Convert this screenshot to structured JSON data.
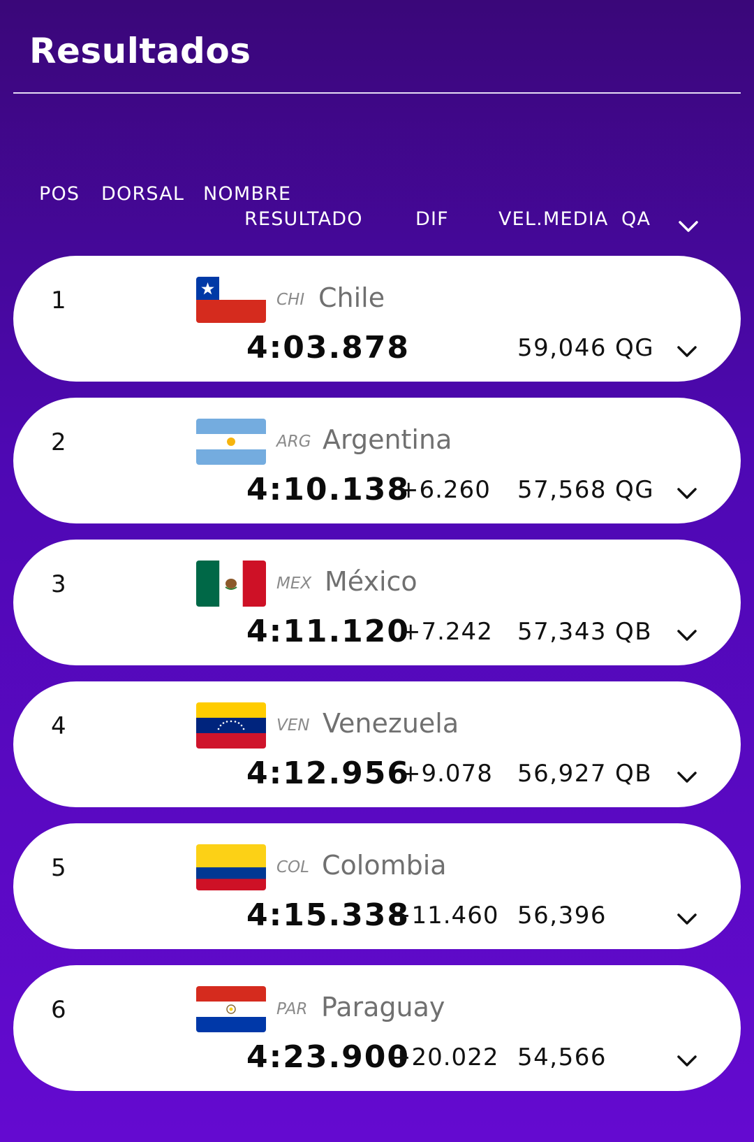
{
  "page": {
    "title": "Resultados"
  },
  "header": {
    "pos": "POS",
    "dorsal": "DORSAL",
    "nombre": "NOMBRE",
    "resultado": "RESULTADO",
    "dif": "DIF",
    "vel_media": "VEL.MEDIA",
    "qa": "QA",
    "expand_icon": "chevron-down-icon"
  },
  "rows": [
    {
      "pos": "1",
      "code": "CHI",
      "country": "Chile",
      "result": "4:03.878",
      "dif": "",
      "speed": "59,046",
      "qa": "QG",
      "flag": "chile-flag"
    },
    {
      "pos": "2",
      "code": "ARG",
      "country": "Argentina",
      "result": "4:10.138",
      "dif": "+6.260",
      "speed": "57,568",
      "qa": "QG",
      "flag": "argentina-flag"
    },
    {
      "pos": "3",
      "code": "MEX",
      "country": "México",
      "result": "4:11.120",
      "dif": "+7.242",
      "speed": "57,343",
      "qa": "QB",
      "flag": "mexico-flag"
    },
    {
      "pos": "4",
      "code": "VEN",
      "country": "Venezuela",
      "result": "4:12.956",
      "dif": "+9.078",
      "speed": "56,927",
      "qa": "QB",
      "flag": "venezuela-flag"
    },
    {
      "pos": "5",
      "code": "COL",
      "country": "Colombia",
      "result": "4:15.338",
      "dif": "+11.460",
      "speed": "56,396",
      "qa": "",
      "flag": "colombia-flag"
    },
    {
      "pos": "6",
      "code": "PAR",
      "country": "Paraguay",
      "result": "4:23.900",
      "dif": "+20.022",
      "speed": "54,566",
      "qa": "",
      "flag": "paraguay-flag"
    }
  ],
  "colors": {
    "background_top": "#3a0779",
    "background_bottom": "#640ad0",
    "card": "#ffffff"
  }
}
